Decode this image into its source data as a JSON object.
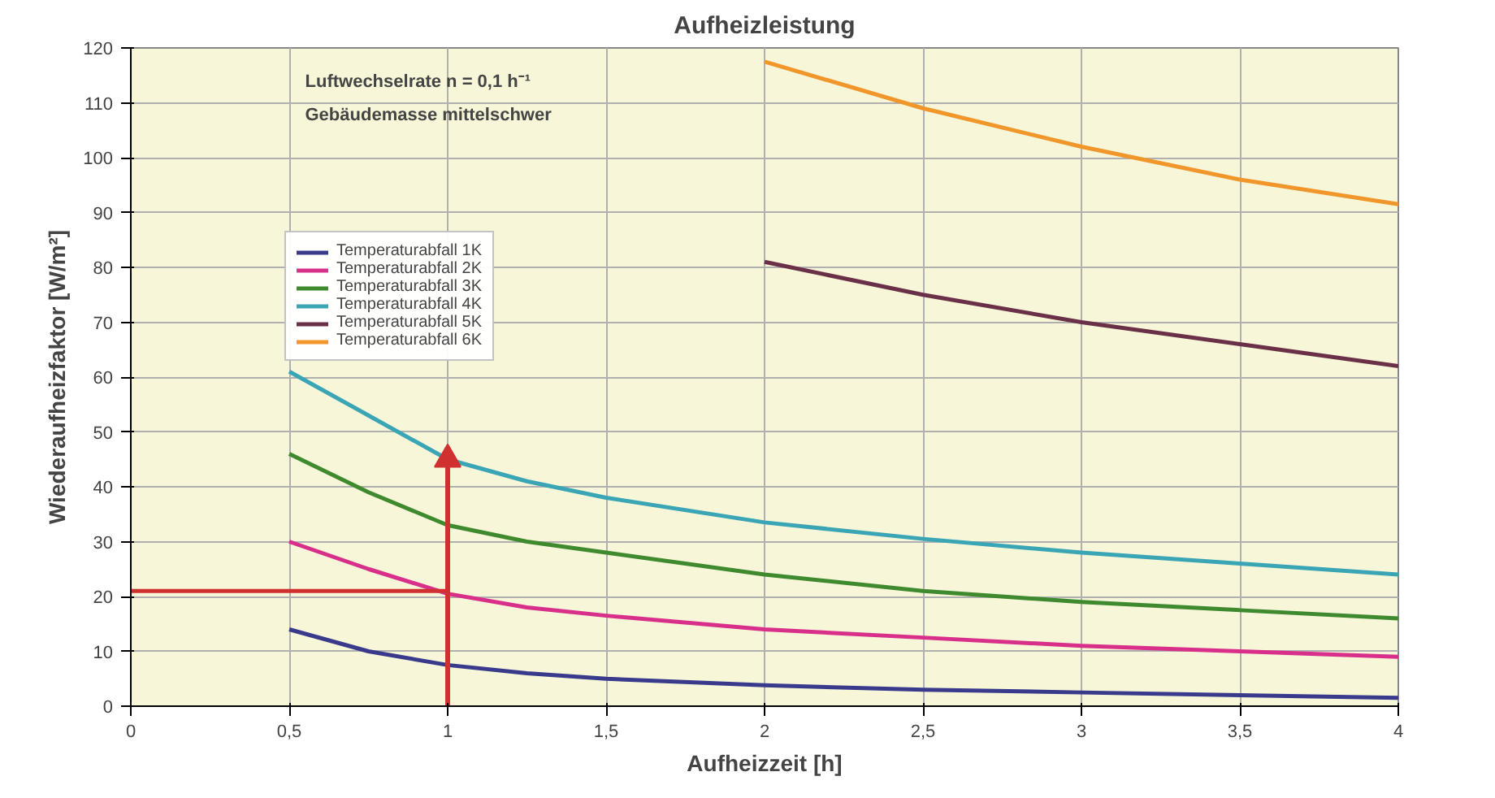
{
  "chart_data": {
    "type": "line",
    "title": "Aufheizleistung",
    "xlabel": "Aufheizzeit [h]",
    "ylabel": "Wiederaufheizfaktor [W/m²]",
    "annotations": [
      "Luftwechselrate n = 0,1 h⁻¹",
      "Gebäudemasse mittelschwer"
    ],
    "xlim": [
      0,
      4
    ],
    "ylim": [
      0,
      120
    ],
    "xticks": [
      0,
      {
        "value": 0.5,
        "label": "0,5"
      },
      1,
      {
        "value": 1.5,
        "label": "1,5"
      },
      2,
      {
        "value": 2.5,
        "label": "2,5"
      },
      3,
      {
        "value": 3.5,
        "label": "3,5"
      },
      4
    ],
    "yticks": [
      0,
      10,
      20,
      30,
      40,
      50,
      60,
      70,
      80,
      90,
      100,
      110,
      120
    ],
    "grid": true,
    "legend": "top left",
    "marker": "none",
    "line_style": "solid",
    "series": [
      {
        "name": "Temperaturabfall 1K",
        "color": "#3a3a8c",
        "x": [
          0.5,
          0.75,
          1,
          1.25,
          1.5,
          2,
          2.5,
          3,
          3.5,
          4
        ],
        "values": [
          14,
          10,
          7.5,
          6,
          5,
          3.8,
          3,
          2.5,
          2,
          1.5
        ]
      },
      {
        "name": "Temperaturabfall 2K",
        "color": "#d8308a",
        "x": [
          0.5,
          0.75,
          1,
          1.25,
          1.5,
          2,
          2.5,
          3,
          3.5,
          4
        ],
        "values": [
          30,
          25,
          20.5,
          18,
          16.5,
          14,
          12.5,
          11,
          10,
          9
        ]
      },
      {
        "name": "Temperaturabfall 3K",
        "color": "#3f8a2e",
        "x": [
          0.5,
          0.75,
          1,
          1.25,
          1.5,
          2,
          2.5,
          3,
          3.5,
          4
        ],
        "values": [
          46,
          39,
          33,
          30,
          28,
          24,
          21,
          19,
          17.5,
          16
        ]
      },
      {
        "name": "Temperaturabfall 4K",
        "color": "#3aa5b5",
        "x": [
          0.5,
          0.75,
          1,
          1.25,
          1.5,
          2,
          2.5,
          3,
          3.5,
          4
        ],
        "values": [
          61,
          53,
          45,
          41,
          38,
          33.5,
          30.5,
          28,
          26,
          24
        ]
      },
      {
        "name": "Temperaturabfall 5K",
        "color": "#6a3048",
        "x": [
          2,
          2.5,
          3,
          3.5,
          4
        ],
        "values": [
          81,
          75,
          70,
          66,
          62
        ]
      },
      {
        "name": "Temperaturabfall 6K",
        "color": "#f0962a",
        "x": [
          2,
          2.5,
          3,
          3.5,
          4
        ],
        "values": [
          117.5,
          109,
          102,
          96,
          91.5
        ]
      },
      {
        "color": "#d03030",
        "x": [
          0,
          1
        ],
        "values": [
          21,
          21
        ]
      },
      {
        "type": "line",
        "marker": "triangle",
        "color": "#d03030",
        "x": [
          1,
          1
        ],
        "values": [
          0,
          45
        ]
      }
    ]
  }
}
